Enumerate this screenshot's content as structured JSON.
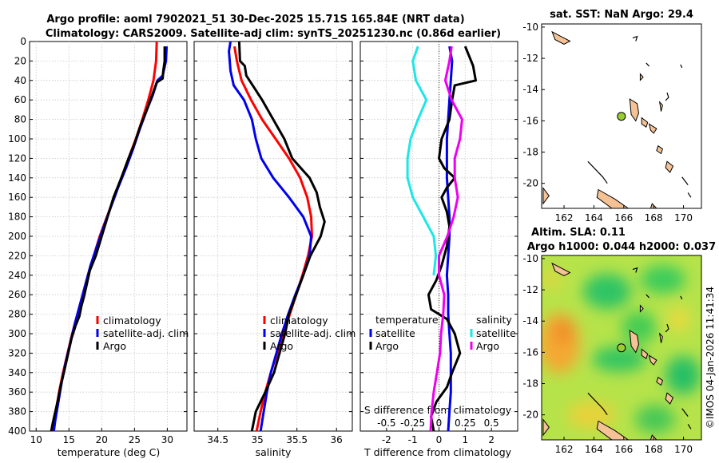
{
  "header": {
    "title_line1": "Argo profile: aoml 7902021_51 30-Dec-2025 15.71S 165.84E (NRT data)",
    "title_line2": "Climatology: CARS2009. Satellite-adj clim: synTS_20251230.nc (0.86d earlier)"
  },
  "colors": {
    "climatology": "#ff0000",
    "satellite": "#0000ee",
    "argo": "#000000",
    "temp_sat": "#1ee6e6",
    "sal_diff": "#ee00ee",
    "land": "#f5c296"
  },
  "chart_data": [
    {
      "type": "line",
      "id": "temperature",
      "xlabel": "temperature (deg C)",
      "ylabel": "depth",
      "xlim": [
        9,
        33
      ],
      "ylim": [
        400,
        0
      ],
      "xticks": [
        10,
        15,
        20,
        25,
        30
      ],
      "yticks": [
        0,
        20,
        40,
        60,
        80,
        100,
        120,
        140,
        160,
        180,
        200,
        220,
        240,
        260,
        280,
        300,
        320,
        340,
        360,
        380,
        400
      ],
      "legend": [
        "climatology",
        "satellite-adj. clim",
        "Argo"
      ],
      "series": [
        {
          "name": "climatology",
          "color": "#ff0000",
          "points": [
            [
              28.4,
              0
            ],
            [
              28.3,
              20
            ],
            [
              27.9,
              40
            ],
            [
              27.1,
              60
            ],
            [
              26.2,
              80
            ],
            [
              25.2,
              100
            ],
            [
              24.1,
              120
            ],
            [
              23.0,
              140
            ],
            [
              21.9,
              160
            ],
            [
              20.8,
              180
            ],
            [
              19.7,
              200
            ],
            [
              18.8,
              220
            ],
            [
              17.9,
              240
            ],
            [
              17.1,
              260
            ],
            [
              16.3,
              280
            ],
            [
              15.5,
              300
            ],
            [
              14.8,
              320
            ],
            [
              14.1,
              340
            ],
            [
              13.5,
              360
            ],
            [
              13.0,
              380
            ],
            [
              12.6,
              400
            ]
          ]
        },
        {
          "name": "satellite-adj. clim",
          "color": "#0000ee",
          "points": [
            [
              29.9,
              5
            ],
            [
              29.8,
              20
            ],
            [
              29.3,
              35
            ],
            [
              28.5,
              40
            ],
            [
              27.8,
              55
            ],
            [
              26.9,
              70
            ],
            [
              25.8,
              90
            ],
            [
              24.8,
              110
            ],
            [
              23.7,
              130
            ],
            [
              22.5,
              150
            ],
            [
              21.4,
              170
            ],
            [
              20.3,
              190
            ],
            [
              19.3,
              210
            ],
            [
              18.3,
              230
            ],
            [
              17.5,
              250
            ],
            [
              16.7,
              270
            ],
            [
              15.9,
              290
            ],
            [
              15.2,
              310
            ],
            [
              14.5,
              330
            ],
            [
              13.9,
              350
            ],
            [
              13.4,
              370
            ],
            [
              12.9,
              390
            ],
            [
              12.7,
              400
            ]
          ]
        },
        {
          "name": "Argo",
          "color": "#000000",
          "points": [
            [
              29.6,
              5
            ],
            [
              29.6,
              20
            ],
            [
              29.4,
              30
            ],
            [
              29.3,
              38
            ],
            [
              28.4,
              42
            ],
            [
              27.7,
              55
            ],
            [
              26.9,
              70
            ],
            [
              26.0,
              85
            ],
            [
              25.0,
              105
            ],
            [
              24.1,
              120
            ],
            [
              23.0,
              140
            ],
            [
              21.8,
              160
            ],
            [
              20.9,
              180
            ],
            [
              20.0,
              200
            ],
            [
              19.1,
              220
            ],
            [
              18.2,
              235
            ],
            [
              17.7,
              250
            ],
            [
              17.3,
              262
            ],
            [
              16.9,
              272
            ],
            [
              16.6,
              282
            ],
            [
              16.0,
              292
            ],
            [
              15.4,
              305
            ],
            [
              14.9,
              320
            ],
            [
              14.3,
              338
            ],
            [
              13.8,
              352
            ],
            [
              13.4,
              366
            ],
            [
              13.0,
              378
            ],
            [
              12.6,
              390
            ],
            [
              12.3,
              400
            ]
          ]
        }
      ]
    },
    {
      "type": "line",
      "id": "salinity",
      "xlabel": "salinity",
      "ylabel": "depth",
      "xlim": [
        34.2,
        36.2
      ],
      "ylim": [
        400,
        0
      ],
      "xticks": [
        34.5,
        35,
        35.5,
        36
      ],
      "legend": [
        "climatology",
        "satellite-adj. clim",
        "Argo"
      ],
      "series": [
        {
          "name": "climatology",
          "color": "#ff0000",
          "points": [
            [
              34.71,
              5
            ],
            [
              34.74,
              20
            ],
            [
              34.8,
              40
            ],
            [
              34.92,
              60
            ],
            [
              35.06,
              80
            ],
            [
              35.23,
              100
            ],
            [
              35.4,
              120
            ],
            [
              35.54,
              140
            ],
            [
              35.63,
              160
            ],
            [
              35.68,
              180
            ],
            [
              35.69,
              200
            ],
            [
              35.64,
              220
            ],
            [
              35.57,
              240
            ],
            [
              35.49,
              260
            ],
            [
              35.41,
              280
            ],
            [
              35.33,
              300
            ],
            [
              35.25,
              320
            ],
            [
              35.17,
              340
            ],
            [
              35.1,
              360
            ],
            [
              35.04,
              380
            ],
            [
              34.99,
              400
            ]
          ]
        },
        {
          "name": "satellite-adj. clim",
          "color": "#0000ee",
          "points": [
            [
              34.66,
              0
            ],
            [
              34.64,
              10
            ],
            [
              34.66,
              30
            ],
            [
              34.7,
              45
            ],
            [
              34.83,
              60
            ],
            [
              34.93,
              80
            ],
            [
              34.98,
              100
            ],
            [
              35.05,
              120
            ],
            [
              35.2,
              140
            ],
            [
              35.4,
              160
            ],
            [
              35.58,
              180
            ],
            [
              35.68,
              200
            ],
            [
              35.66,
              220
            ],
            [
              35.58,
              240
            ],
            [
              35.48,
              260
            ],
            [
              35.39,
              280
            ],
            [
              35.31,
              300
            ],
            [
              35.24,
              320
            ],
            [
              35.17,
              340
            ],
            [
              35.12,
              360
            ],
            [
              35.08,
              380
            ],
            [
              35.04,
              400
            ]
          ]
        },
        {
          "name": "Argo",
          "color": "#000000",
          "points": [
            [
              34.77,
              0
            ],
            [
              34.78,
              20
            ],
            [
              34.84,
              25
            ],
            [
              34.86,
              35
            ],
            [
              34.94,
              45
            ],
            [
              35.06,
              60
            ],
            [
              35.2,
              80
            ],
            [
              35.34,
              100
            ],
            [
              35.44,
              120
            ],
            [
              35.66,
              140
            ],
            [
              35.75,
              155
            ],
            [
              35.79,
              170
            ],
            [
              35.85,
              185
            ],
            [
              35.8,
              200
            ],
            [
              35.67,
              220
            ],
            [
              35.58,
              240
            ],
            [
              35.49,
              260
            ],
            [
              35.4,
              280
            ],
            [
              35.35,
              300
            ],
            [
              35.28,
              320
            ],
            [
              35.21,
              340
            ],
            [
              35.1,
              360
            ],
            [
              34.98,
              380
            ],
            [
              34.93,
              400
            ]
          ]
        }
      ]
    },
    {
      "type": "line",
      "id": "difference",
      "xlabel": "T difference from climatology",
      "xlabel_top": "S difference from climatology",
      "xlim": [
        -3,
        3
      ],
      "ylim": [
        400,
        0
      ],
      "xticks": [
        -2,
        -1,
        0,
        1,
        2
      ],
      "xticks_s": [
        -0.5,
        -0.25,
        0,
        0.25,
        0.5
      ],
      "legend_left_title": "temperature",
      "legend_right_title": "salinity",
      "legend_left": [
        "satellite",
        "Argo"
      ],
      "legend_right": [
        "satellite",
        "Argo"
      ],
      "series": [
        {
          "name": "T satellite",
          "color": "#0000ee",
          "points": [
            [
              0.4,
              5
            ],
            [
              0.5,
              20
            ],
            [
              0.45,
              40
            ],
            [
              0.4,
              60
            ],
            [
              0.35,
              80
            ],
            [
              0.3,
              100
            ],
            [
              0.3,
              120
            ],
            [
              0.3,
              140
            ],
            [
              0.35,
              160
            ],
            [
              0.4,
              180
            ],
            [
              0.4,
              200
            ],
            [
              0.35,
              220
            ],
            [
              0.3,
              240
            ],
            [
              0.35,
              260
            ],
            [
              0.35,
              280
            ],
            [
              0.4,
              300
            ],
            [
              0.45,
              320
            ],
            [
              0.45,
              340
            ],
            [
              0.45,
              360
            ],
            [
              0.4,
              380
            ],
            [
              0.35,
              400
            ]
          ]
        },
        {
          "name": "T Argo",
          "color": "#000000",
          "points": [
            [
              1.0,
              5
            ],
            [
              1.3,
              25
            ],
            [
              1.4,
              40
            ],
            [
              0.6,
              45
            ],
            [
              0.5,
              60
            ],
            [
              0.4,
              80
            ],
            [
              0.1,
              100
            ],
            [
              0.0,
              120
            ],
            [
              0.2,
              130
            ],
            [
              0.6,
              140
            ],
            [
              0.3,
              150
            ],
            [
              0.1,
              160
            ],
            [
              0.3,
              175
            ],
            [
              0.4,
              190
            ],
            [
              0.3,
              210
            ],
            [
              0.1,
              230
            ],
            [
              -0.1,
              245
            ],
            [
              -0.4,
              260
            ],
            [
              -0.3,
              275
            ],
            [
              0.3,
              285
            ],
            [
              0.6,
              300
            ],
            [
              0.8,
              320
            ],
            [
              0.5,
              340
            ],
            [
              0.3,
              355
            ],
            [
              -0.1,
              370
            ],
            [
              -0.3,
              385
            ],
            [
              -0.2,
              400
            ]
          ]
        },
        {
          "name": "S satellite",
          "color": "#1ee6e6",
          "points": [
            [
              -0.2,
              5
            ],
            [
              -0.25,
              20
            ],
            [
              -0.22,
              40
            ],
            [
              -0.12,
              60
            ],
            [
              -0.2,
              80
            ],
            [
              -0.27,
              100
            ],
            [
              -0.3,
              120
            ],
            [
              -0.3,
              140
            ],
            [
              -0.25,
              160
            ],
            [
              -0.15,
              180
            ],
            [
              -0.05,
              200
            ],
            [
              -0.03,
              220
            ],
            [
              -0.05,
              240
            ]
          ]
        },
        {
          "name": "S Argo",
          "color": "#ee00ee",
          "points": [
            [
              0.12,
              5
            ],
            [
              0.1,
              20
            ],
            [
              0.06,
              40
            ],
            [
              0.12,
              60
            ],
            [
              0.22,
              80
            ],
            [
              0.2,
              100
            ],
            [
              0.15,
              120
            ],
            [
              0.15,
              140
            ],
            [
              0.18,
              160
            ],
            [
              0.14,
              180
            ],
            [
              0.08,
              200
            ],
            [
              0.0,
              220
            ],
            [
              0.0,
              240
            ],
            [
              0.05,
              260
            ],
            [
              0.04,
              280
            ],
            [
              0.02,
              300
            ],
            [
              0.01,
              320
            ],
            [
              -0.02,
              340
            ],
            [
              -0.05,
              360
            ],
            [
              -0.07,
              380
            ],
            [
              -0.08,
              400
            ]
          ]
        }
      ]
    }
  ],
  "maps": {
    "sst": {
      "title": "sat. SST: NaN Argo: 29.4",
      "xticks": [
        162,
        164,
        166,
        168,
        170
      ],
      "yticks": [
        -10,
        -12,
        -14,
        -16,
        -18,
        -20
      ]
    },
    "sla": {
      "title1": "Altim. SLA: 0.11",
      "title2": "Argo h1000: 0.044 h2000: 0.037",
      "xticks": [
        162,
        164,
        166,
        168,
        170
      ],
      "yticks": [
        -10,
        -12,
        -14,
        -16,
        -18,
        -20
      ]
    },
    "profile_location": {
      "lon": 165.84,
      "lat": -15.71
    }
  },
  "credit": "©IMOS 04-Jan-2026 11:41:34"
}
